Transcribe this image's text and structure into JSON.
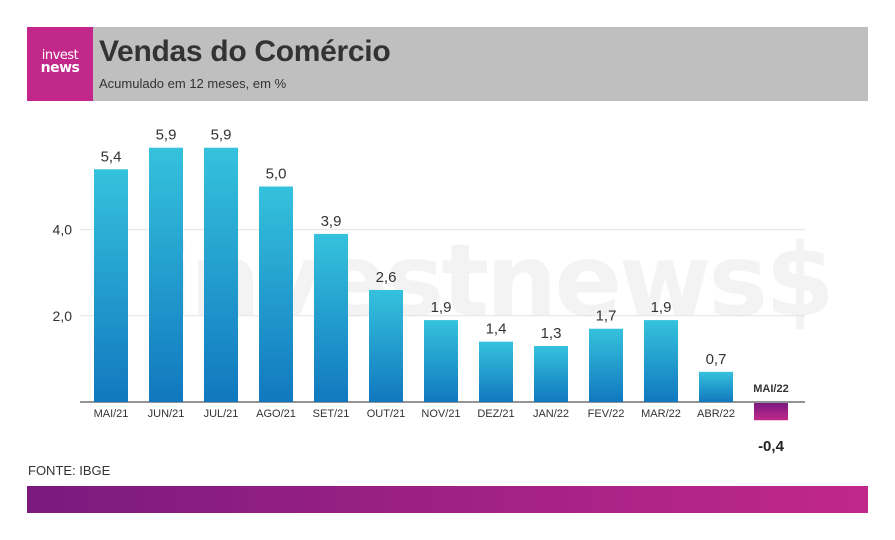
{
  "brand": {
    "logo_line1": "invest",
    "logo_line2": "news",
    "watermark": "investnews$",
    "colors": {
      "accent": "#c2278a",
      "header_bg": "#bfbfbf",
      "bar_positive_top": "#35c2dd",
      "bar_positive_bottom": "#1178bf",
      "bar_negative_top": "#7a1a7f",
      "bar_negative_bottom": "#c2278a",
      "footer_gradient_start": "#7a1a7f",
      "footer_gradient_end": "#c2278a"
    }
  },
  "header": {
    "title": "Vendas do Comércio",
    "subtitle": "Acumulado em 12 meses, em %"
  },
  "footer": {
    "source": "FONTE: IBGE"
  },
  "chart_data": {
    "type": "bar",
    "title": "Vendas do Comércio",
    "subtitle": "Acumulado em 12 meses, em %",
    "xlabel": "",
    "ylabel": "",
    "categories": [
      "MAI/21",
      "JUN/21",
      "JUL/21",
      "AGO/21",
      "SET/21",
      "OUT/21",
      "NOV/21",
      "DEZ/21",
      "JAN/22",
      "FEV/22",
      "MAR/22",
      "ABR/22",
      "MAI/22"
    ],
    "values": [
      5.4,
      5.9,
      5.9,
      5.0,
      3.9,
      2.6,
      1.9,
      1.4,
      1.3,
      1.7,
      1.9,
      0.7,
      -0.4
    ],
    "value_labels": [
      "5,4",
      "5,9",
      "5,9",
      "5,0",
      "3,9",
      "2,6",
      "1,9",
      "1,4",
      "1,3",
      "1,7",
      "1,9",
      "0,7",
      "-0,4"
    ],
    "yticks": [
      2.0,
      4.0
    ],
    "ytick_labels": [
      "2,0",
      "4,0"
    ],
    "ylim": [
      -0.4,
      6.0
    ],
    "grid": true,
    "legend": "none",
    "highlight_index": 12
  }
}
